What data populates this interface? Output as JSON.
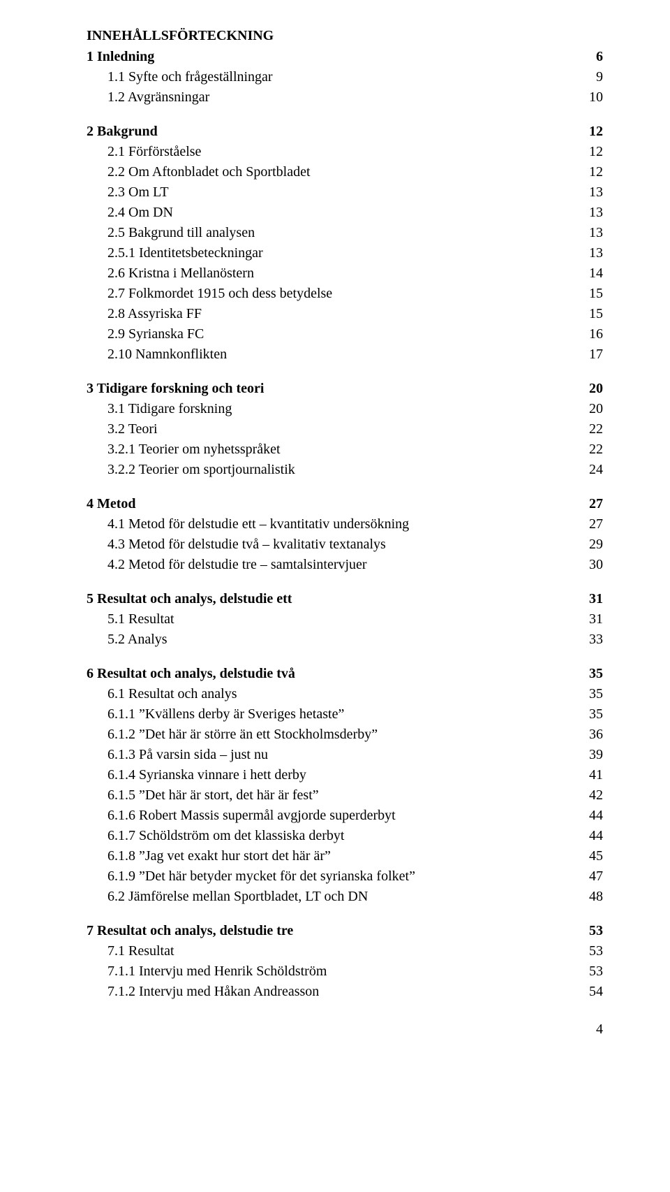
{
  "title": "INNEHÅLLSFÖRTECKNING",
  "footer_page_no": "4",
  "entries": [
    {
      "label": "1 Inledning",
      "page": "6",
      "bold": true,
      "indent": 0
    },
    {
      "label": "1.1 Syfte och frågeställningar",
      "page": "9",
      "bold": false,
      "indent": 1
    },
    {
      "label": "1.2 Avgränsningar",
      "page": "10",
      "bold": false,
      "indent": 1
    },
    {
      "gap": true
    },
    {
      "label": "2 Bakgrund",
      "page": "12",
      "bold": true,
      "indent": 0
    },
    {
      "label": "2.1 Förförståelse",
      "page": "12",
      "bold": false,
      "indent": 1
    },
    {
      "label": "2.2 Om Aftonbladet och Sportbladet",
      "page": "12",
      "bold": false,
      "indent": 1
    },
    {
      "label": "2.3 Om LT",
      "page": "13",
      "bold": false,
      "indent": 1
    },
    {
      "label": "2.4 Om DN",
      "page": "13",
      "bold": false,
      "indent": 1
    },
    {
      "label": "2.5 Bakgrund till analysen",
      "page": "13",
      "bold": false,
      "indent": 1
    },
    {
      "label": "2.5.1 Identitetsbeteckningar",
      "page": "13",
      "bold": false,
      "indent": 1
    },
    {
      "label": "2.6 Kristna i Mellanöstern",
      "page": "14",
      "bold": false,
      "indent": 1
    },
    {
      "label": "2.7 Folkmordet 1915 och dess betydelse",
      "page": "15",
      "bold": false,
      "indent": 1
    },
    {
      "label": "2.8 Assyriska FF",
      "page": "15",
      "bold": false,
      "indent": 1
    },
    {
      "label": "2.9 Syrianska FC",
      "page": "16",
      "bold": false,
      "indent": 1
    },
    {
      "label": "2.10 Namnkonflikten",
      "page": "17",
      "bold": false,
      "indent": 1
    },
    {
      "gap": true
    },
    {
      "label": "3 Tidigare forskning och teori",
      "page": "20",
      "bold": true,
      "indent": 0
    },
    {
      "label": "3.1 Tidigare forskning",
      "page": "20",
      "bold": false,
      "indent": 1
    },
    {
      "label": "3.2 Teori",
      "page": "22",
      "bold": false,
      "indent": 1
    },
    {
      "label": "3.2.1 Teorier om nyhetsspråket",
      "page": "22",
      "bold": false,
      "indent": 1
    },
    {
      "label": "3.2.2 Teorier om sportjournalistik",
      "page": "24",
      "bold": false,
      "indent": 1
    },
    {
      "gap": true
    },
    {
      "label": "4 Metod",
      "page": "27",
      "bold": true,
      "indent": 0
    },
    {
      "label": "4.1 Metod för delstudie ett – kvantitativ undersökning",
      "page": "27",
      "bold": false,
      "indent": 1
    },
    {
      "label": "4.3 Metod för delstudie två – kvalitativ textanalys",
      "page": "29",
      "bold": false,
      "indent": 1
    },
    {
      "label": "4.2 Metod för delstudie tre – samtalsintervjuer",
      "page": "30",
      "bold": false,
      "indent": 1
    },
    {
      "gap": true
    },
    {
      "label": "5 Resultat och analys, delstudie ett",
      "page": "31",
      "bold": true,
      "indent": 0
    },
    {
      "label": "5.1 Resultat",
      "page": "31",
      "bold": false,
      "indent": 1
    },
    {
      "label": "5.2 Analys",
      "page": "33",
      "bold": false,
      "indent": 1
    },
    {
      "gap": true
    },
    {
      "label": "6 Resultat och analys, delstudie två",
      "page": "35",
      "bold": true,
      "indent": 0
    },
    {
      "label": "6.1 Resultat och analys",
      "page": "35",
      "bold": false,
      "indent": 1
    },
    {
      "label": "6.1.1 ”Kvällens derby är Sveriges hetaste”",
      "page": "35",
      "bold": false,
      "indent": 1
    },
    {
      "label": "6.1.2 ”Det här är större än ett Stockholmsderby”",
      "page": "36",
      "bold": false,
      "indent": 1
    },
    {
      "label": "6.1.3 På varsin sida – just nu",
      "page": "39",
      "bold": false,
      "indent": 1
    },
    {
      "label": "6.1.4 Syrianska vinnare i hett derby",
      "page": "41",
      "bold": false,
      "indent": 1
    },
    {
      "label": "6.1.5 ”Det här är stort, det här är fest”",
      "page": "42",
      "bold": false,
      "indent": 1
    },
    {
      "label": "6.1.6 Robert Massis supermål avgjorde superderbyt",
      "page": "44",
      "bold": false,
      "indent": 1
    },
    {
      "label": "6.1.7 Schöldström om det klassiska derbyt",
      "page": "44",
      "bold": false,
      "indent": 1
    },
    {
      "label": "6.1.8 ”Jag vet exakt hur stort det här är”",
      "page": "45",
      "bold": false,
      "indent": 1
    },
    {
      "label": "6.1.9 ”Det här betyder mycket för det syrianska folket”",
      "page": "47",
      "bold": false,
      "indent": 1
    },
    {
      "label": "6.2 Jämförelse mellan Sportbladet, LT och DN",
      "page": "48",
      "bold": false,
      "indent": 1
    },
    {
      "gap": true
    },
    {
      "label": "7 Resultat och analys, delstudie tre",
      "page": "53",
      "bold": true,
      "indent": 0
    },
    {
      "label": "7.1 Resultat",
      "page": "53",
      "bold": false,
      "indent": 1
    },
    {
      "label": "7.1.1 Intervju med Henrik Schöldström",
      "page": "53",
      "bold": false,
      "indent": 1
    },
    {
      "label": "7.1.2 Intervju med Håkan Andreasson",
      "page": "54",
      "bold": false,
      "indent": 1
    }
  ]
}
